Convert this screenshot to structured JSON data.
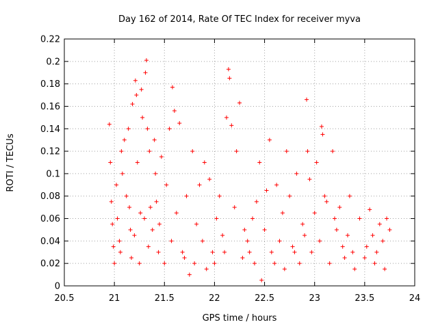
{
  "chart_data": {
    "type": "scatter",
    "title": "Day 162 of 2014, Rate Of TEC Index for receiver myva",
    "xlabel": "GPS time / hours",
    "ylabel": "ROTI / TECUs",
    "xlim": [
      20.5,
      24
    ],
    "ylim": [
      0,
      0.22
    ],
    "x_ticks": [
      20.5,
      21,
      21.5,
      22,
      22.5,
      23,
      23.5,
      24
    ],
    "x_tick_labels": [
      "20.5",
      "21",
      "21.5",
      "22",
      "22.5",
      "23",
      "23.5",
      "24"
    ],
    "y_ticks": [
      0,
      0.02,
      0.04,
      0.06,
      0.08,
      0.1,
      0.12,
      0.14,
      0.16,
      0.18,
      0.2,
      0.22
    ],
    "y_tick_labels": [
      "0",
      "0.02",
      "0.04",
      "0.06",
      "0.08",
      "0.1",
      "0.12",
      "0.14",
      "0.16",
      "0.18",
      "0.2",
      "0.22"
    ],
    "grid": true,
    "marker": "plus",
    "marker_color": "#ff0000",
    "series": [
      {
        "name": "ROTI",
        "x": [
          20.95,
          20.96,
          20.97,
          20.98,
          20.99,
          21.0,
          21.02,
          21.03,
          21.05,
          21.06,
          21.07,
          21.08,
          21.1,
          21.12,
          21.14,
          21.15,
          21.16,
          21.17,
          21.18,
          21.2,
          21.21,
          21.22,
          21.23,
          21.25,
          21.26,
          21.27,
          21.28,
          21.3,
          21.31,
          21.32,
          21.33,
          21.34,
          21.35,
          21.36,
          21.38,
          21.4,
          21.41,
          21.42,
          21.44,
          21.45,
          21.47,
          21.5,
          21.52,
          21.55,
          21.57,
          21.58,
          21.6,
          21.62,
          21.65,
          21.68,
          21.7,
          21.72,
          21.75,
          21.78,
          21.8,
          21.82,
          21.85,
          21.88,
          21.9,
          21.92,
          21.95,
          21.98,
          22.0,
          22.02,
          22.05,
          22.08,
          22.1,
          22.12,
          22.14,
          22.15,
          22.17,
          22.2,
          22.22,
          22.25,
          22.28,
          22.3,
          22.33,
          22.35,
          22.38,
          22.4,
          22.42,
          22.45,
          22.47,
          22.5,
          22.52,
          22.55,
          22.57,
          22.6,
          22.62,
          22.65,
          22.68,
          22.7,
          22.72,
          22.75,
          22.78,
          22.8,
          22.82,
          22.85,
          22.88,
          22.9,
          22.92,
          22.93,
          22.95,
          22.97,
          23.0,
          23.02,
          23.05,
          23.07,
          23.08,
          23.1,
          23.12,
          23.15,
          23.18,
          23.2,
          23.22,
          23.25,
          23.28,
          23.3,
          23.33,
          23.35,
          23.38,
          23.4,
          23.45,
          23.5,
          23.52,
          23.55,
          23.58,
          23.6,
          23.62,
          23.65,
          23.68,
          23.7,
          23.72,
          23.75
        ],
        "y": [
          0.144,
          0.11,
          0.075,
          0.055,
          0.035,
          0.02,
          0.09,
          0.06,
          0.04,
          0.03,
          0.12,
          0.1,
          0.13,
          0.08,
          0.14,
          0.07,
          0.05,
          0.025,
          0.162,
          0.045,
          0.183,
          0.17,
          0.11,
          0.02,
          0.065,
          0.175,
          0.15,
          0.06,
          0.19,
          0.201,
          0.14,
          0.035,
          0.12,
          0.07,
          0.05,
          0.13,
          0.1,
          0.075,
          0.03,
          0.055,
          0.115,
          0.02,
          0.09,
          0.14,
          0.04,
          0.177,
          0.156,
          0.065,
          0.145,
          0.03,
          0.025,
          0.08,
          0.01,
          0.12,
          0.02,
          0.055,
          0.09,
          0.04,
          0.11,
          0.015,
          0.095,
          0.03,
          0.02,
          0.06,
          0.08,
          0.045,
          0.03,
          0.15,
          0.193,
          0.185,
          0.143,
          0.07,
          0.12,
          0.163,
          0.025,
          0.05,
          0.04,
          0.03,
          0.06,
          0.02,
          0.075,
          0.11,
          0.005,
          0.05,
          0.085,
          0.13,
          0.03,
          0.02,
          0.09,
          0.04,
          0.065,
          0.015,
          0.12,
          0.08,
          0.035,
          0.03,
          0.1,
          0.02,
          0.055,
          0.045,
          0.166,
          0.12,
          0.095,
          0.03,
          0.065,
          0.11,
          0.04,
          0.142,
          0.135,
          0.08,
          0.075,
          0.02,
          0.12,
          0.06,
          0.05,
          0.07,
          0.035,
          0.025,
          0.045,
          0.08,
          0.03,
          0.015,
          0.06,
          0.025,
          0.035,
          0.068,
          0.045,
          0.02,
          0.03,
          0.055,
          0.04,
          0.015,
          0.06,
          0.05
        ]
      }
    ]
  }
}
